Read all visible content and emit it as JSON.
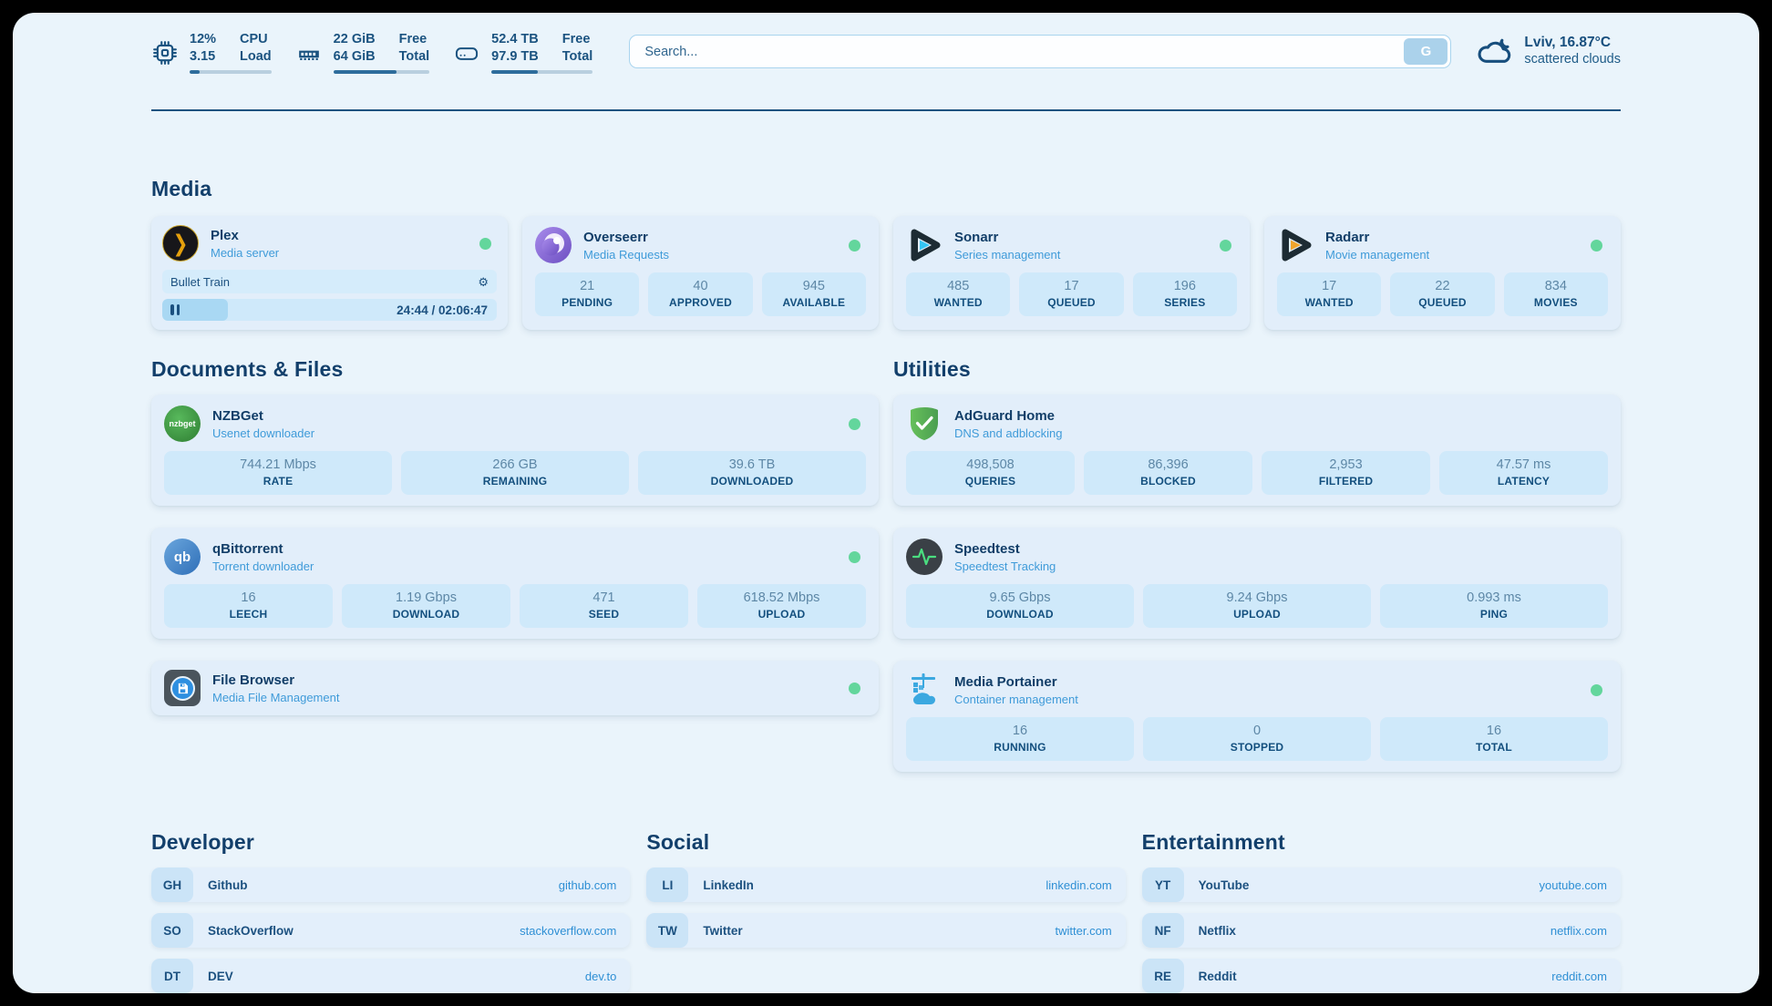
{
  "header": {
    "cpu": {
      "value_top": "12%",
      "value_bottom": "3.15",
      "label_top": "CPU",
      "label_bottom": "Load",
      "progress": 12
    },
    "memory": {
      "value_top": "22 GiB",
      "value_bottom": "64 GiB",
      "label_top": "Free",
      "label_bottom": "Total",
      "progress": 66
    },
    "disk": {
      "value_top": "52.4 TB",
      "value_bottom": "97.9 TB",
      "label_top": "Free",
      "label_bottom": "Total",
      "progress": 46
    },
    "search": {
      "placeholder": "Search...",
      "engine_label": "G"
    },
    "weather": {
      "location_temp": "Lviv, 16.87°C",
      "condition": "scattered clouds"
    }
  },
  "sections": {
    "media": "Media",
    "documents": "Documents & Files",
    "utilities": "Utilities",
    "developer": "Developer",
    "social": "Social",
    "entertainment": "Entertainment"
  },
  "apps": {
    "plex": {
      "name": "Plex",
      "subtitle": "Media server",
      "player": {
        "title": "Bullet Train",
        "time": "24:44 / 02:06:47",
        "progress": 19.5
      }
    },
    "overseerr": {
      "name": "Overseerr",
      "subtitle": "Media Requests",
      "stats": [
        {
          "value": "21",
          "label": "PENDING"
        },
        {
          "value": "40",
          "label": "APPROVED"
        },
        {
          "value": "945",
          "label": "AVAILABLE"
        }
      ]
    },
    "sonarr": {
      "name": "Sonarr",
      "subtitle": "Series management",
      "stats": [
        {
          "value": "485",
          "label": "WANTED"
        },
        {
          "value": "17",
          "label": "QUEUED"
        },
        {
          "value": "196",
          "label": "SERIES"
        }
      ]
    },
    "radarr": {
      "name": "Radarr",
      "subtitle": "Movie management",
      "stats": [
        {
          "value": "17",
          "label": "WANTED"
        },
        {
          "value": "22",
          "label": "QUEUED"
        },
        {
          "value": "834",
          "label": "MOVIES"
        }
      ]
    },
    "nzbget": {
      "name": "NZBGet",
      "subtitle": "Usenet downloader",
      "icon_text": "nzbget",
      "stats": [
        {
          "value": "744.21 Mbps",
          "label": "RATE"
        },
        {
          "value": "266 GB",
          "label": "REMAINING"
        },
        {
          "value": "39.6 TB",
          "label": "DOWNLOADED"
        }
      ]
    },
    "qbittorrent": {
      "name": "qBittorrent",
      "subtitle": "Torrent downloader",
      "icon_text": "qb",
      "stats": [
        {
          "value": "16",
          "label": "LEECH"
        },
        {
          "value": "1.19 Gbps",
          "label": "DOWNLOAD"
        },
        {
          "value": "471",
          "label": "SEED"
        },
        {
          "value": "618.52 Mbps",
          "label": "UPLOAD"
        }
      ]
    },
    "filebrowser": {
      "name": "File Browser",
      "subtitle": "Media File Management"
    },
    "adguard": {
      "name": "AdGuard Home",
      "subtitle": "DNS and adblocking",
      "stats": [
        {
          "value": "498,508",
          "label": "QUERIES"
        },
        {
          "value": "86,396",
          "label": "BLOCKED"
        },
        {
          "value": "2,953",
          "label": "FILTERED"
        },
        {
          "value": "47.57 ms",
          "label": "LATENCY"
        }
      ]
    },
    "speedtest": {
      "name": "Speedtest",
      "subtitle": "Speedtest Tracking",
      "stats": [
        {
          "value": "9.65 Gbps",
          "label": "DOWNLOAD"
        },
        {
          "value": "9.24 Gbps",
          "label": "UPLOAD"
        },
        {
          "value": "0.993 ms",
          "label": "PING"
        }
      ]
    },
    "portainer": {
      "name": "Media Portainer",
      "subtitle": "Container management",
      "stats": [
        {
          "value": "16",
          "label": "RUNNING"
        },
        {
          "value": "0",
          "label": "STOPPED"
        },
        {
          "value": "16",
          "label": "TOTAL"
        }
      ]
    }
  },
  "bookmarks": {
    "developer": {
      "items": [
        {
          "badge": "GH",
          "name": "Github",
          "url": "github.com"
        },
        {
          "badge": "SO",
          "name": "StackOverflow",
          "url": "stackoverflow.com"
        },
        {
          "badge": "DT",
          "name": "DEV",
          "url": "dev.to"
        }
      ]
    },
    "social": {
      "items": [
        {
          "badge": "LI",
          "name": "LinkedIn",
          "url": "linkedin.com"
        },
        {
          "badge": "TW",
          "name": "Twitter",
          "url": "twitter.com"
        }
      ]
    },
    "entertainment": {
      "items": [
        {
          "badge": "YT",
          "name": "YouTube",
          "url": "youtube.com"
        },
        {
          "badge": "NF",
          "name": "Netflix",
          "url": "netflix.com"
        },
        {
          "badge": "RE",
          "name": "Reddit",
          "url": "reddit.com"
        }
      ]
    }
  }
}
